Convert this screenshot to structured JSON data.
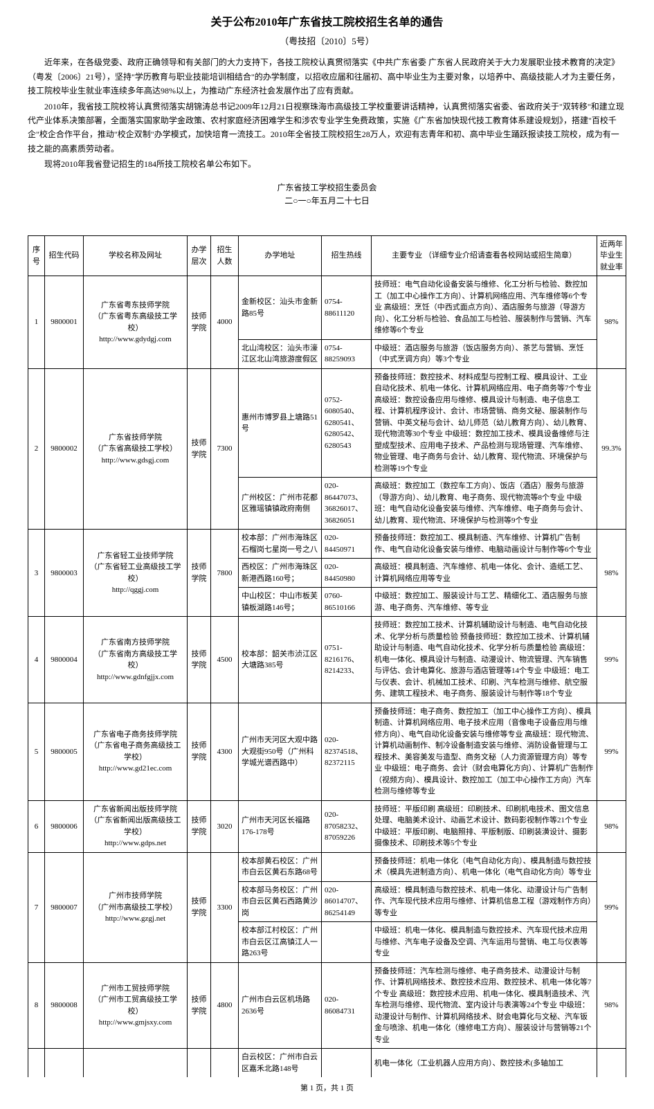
{
  "doc": {
    "title": "关于公布2010年广东省技工院校招生名单的通告",
    "subtitle": "（粤技招〔2010〕5号）",
    "paragraphs": [
      "近年来，在各级党委、政府正确领导和有关部门的大力支持下，各技工院校认真贯彻落实《中共广东省委 广东省人民政府关于大力发展职业技术教育的决定》（粤发〔2006〕21号），坚持\"学历教育与职业技能培训相结合\"的办学制度，以招收应届和往届初、高中毕业生为主要对象，以培养中、高级技能人才为主要任务，技工院校毕业生就业率连续多年高达98%以上，为推动广东经济社会发展作出了应有贡献。",
      "2010年，我省技工院校将认真贯彻落实胡锦涛总书记2009年12月21日视察珠海市高级技工学校重要讲话精神，认真贯彻落实省委、省政府关于\"双转移\"和建立现代产业体系决策部署，全面落实国家助学金政策、农村家庭经济困难学生和涉农专业学生免费政策，实施《广东省加快现代技工教育体系建设规划》，搭建\"百校千企\"校企合作平台，推动\"校企双制\"办学模式，加快培育一流技工。2010年全省技工院校招生28万人，欢迎有志青年和初、高中毕业生踊跃报读技工院校，成为有一技之能的高素质劳动者。",
      "现将2010年我省登记招生的184所技工院校名单公布如下。"
    ],
    "signature_org": "广东省技工学校招生委员会",
    "signature_date": "二○一○年五月二十七日",
    "footer": "第 1 页，共 1 页"
  },
  "table": {
    "headers": {
      "seq": "序号",
      "code": "招生代码",
      "name": "学校名称及网址",
      "level": "办学层次",
      "count": "招生人数",
      "addr": "办学地址",
      "phone": "招生热线",
      "major": "主要专业\n（详细专业介绍请查看各校网站或招生简章）",
      "rate": "近两年毕业生就业率"
    },
    "rows": [
      {
        "seq": "1",
        "code": "9800001",
        "name": "广东省粤东技师学院\n（广东省粤东高级技工学校）\nhttp://www.gdydgj.com",
        "level": "技师学院",
        "count": "4000",
        "addr1": "金新校区：汕头市金新路85号",
        "phone1": "0754-88611120",
        "major1": "技师班：电气自动化设备安装与维修、化工分析与检验、数控加工（加工中心操作工方向）、计算机网络应用、汽车维修等6个专业\n高级班：烹饪（中西式面点方向）、酒店服务与旅游（导游方向）、化工分析与检验、食品加工与检验、服装制作与营销、汽车维修等6个专业",
        "addr2": "北山湾校区：汕头市濠江区北山湾旅游度假区",
        "phone2": "0754-88259093",
        "major2": "中级班：酒店服务与旅游（饭店服务方向）、茶艺与营销、烹饪（中式烹调方向）等3个专业",
        "rate": "98%"
      },
      {
        "seq": "2",
        "code": "9800002",
        "name": "广东省技师学院\n（广东省高级技工学校）\nhttp://www.gdsgj.com",
        "level": "技师学院",
        "count": "7300",
        "addr1": "惠州市博罗县上塘路51号",
        "phone1": "0752-6080540、6280541、6280542、6280543",
        "major1": "预备技师班：数控技术、材料成型与控制工程、模具设计、工业自动化技术、机电一体化、计算机网络应用、电子商务等7个专业\n高级班：数控设备应用与维修、模具设计与制造、电子信息工程、计算机程序设计、会计、市场营销、商务文秘、服装制作与营销、中英文秘与会计、幼儿师范（幼儿教育方向）、幼儿教育、现代物流等30个专业\n中级班：数控加工技术、模具设备维修与注塑成型技术、应用电子技术、产品检测与现场管理、汽车维修、物业管理、电子商务与会计、幼儿教育、现代物流、环境保护与检测等19个专业",
        "addr2": "广州校区：广州市花都区雅瑶镇镇政府南侧",
        "phone2": "020-86447073、36826017、36826051",
        "major2": "高级班：数控加工（数控车工方向）、饭店（酒店）服务与旅游（导游方向）、幼儿教育、电子商务、现代物流等8个专业\n中级班：电气自动化设备安装与维修、汽车维修、电子商务与会计、幼儿教育、现代物流、环境保护与检测等9个专业",
        "rate": "99.3%"
      },
      {
        "seq": "3",
        "code": "9800003",
        "name": "广东省轻工业技师学院\n（广东省轻工业高级技工学校）\nhttp://qggj.com",
        "level": "技师学院",
        "count": "7800",
        "addr1": "校本部：广州市海珠区石榴岗七星岗一号之八",
        "phone1": "020-84450971",
        "major1": "预备技师班：数控加工、模具制造、汽车维修、计算机广告制作、电气自动化设备安装与维修、电脑动画设计与制作等6个专业",
        "addr2": "西校区：广州市海珠区新港西路160号；",
        "phone2": "020-84450980",
        "major2": "高级班：模具制造、汽车维修、机电一体化、会计、造纸工艺、计算机网络应用等专业",
        "addr3": "中山校区：中山市板芙镇板湖路146号；",
        "phone3": "0760-86510166",
        "major3": "中级班：数控加工、服装设计与工艺、精细化工、酒店服务与旅游、电子商务、汽车维修、等专业",
        "rate": "98%"
      },
      {
        "seq": "4",
        "code": "9800004",
        "name": "广东省南方技师学院\n（广东省南方高级技工学校）\nhttp://www.gdnfgjjx.com",
        "level": "技师学院",
        "count": "4500",
        "addr1": "校本部：韶关市浈江区大塘路385号",
        "phone1": "0751-8216176、8214233、",
        "major1": "技师班：数控加工技术、计算机辅助设计与制造、电气自动化技术、化学分析与质量检验\n预备技师班：数控加工技术、计算机辅助设计与制造、电气自动化技术、化学分析与质量检验\n高级班：机电一体化、模具设计与制造、动漫设计、物流管理、汽车销售与评估、会计电算化、旅游与酒店管理等14个专业\n中级班：电工与仪表、会计、机械加工技术、印刷、汽车检测与维修、航空服务、建筑工程技术、电子商务、服装设计与制作等18个专业",
        "rate": "99%"
      },
      {
        "seq": "5",
        "code": "9800005",
        "name": "广东省电子商务技师学院\n（广东省电子商务高级技工学校）\nhttp://www.gd21ec.com",
        "level": "技师学院",
        "count": "4300",
        "addr1": "广州市天河区大观中路大观街950号（广州科学城光谱西路中）",
        "phone1": "020-82374518、82372115",
        "major1": "预备技师班：电子商务、数控加工（加工中心操作工方向）、模具制造、计算机网络应用、电子技术应用（音像电子设备应用与维修方向）、电气自动化设备安装与维修等专业\n高级班：现代物流、计算机动画制作、制冷设备制造安装与维修、消防设备管理与工程技术、美容美发与造型、商务文秘（人力资源管理方向）等专业\n中级班：电子商务、会计（财会电算化方向）、计算机广告制作（视频方向）、模具设计、数控加工（加工中心操作工方向）汽车检测与维修等专业",
        "rate": "99%"
      },
      {
        "seq": "6",
        "code": "9800006",
        "name": "广东省新闻出版技师学院\n（广东省新闻出版高级技工学校）\nhttp://www.gdps.net",
        "level": "技师学院",
        "count": "3020",
        "addr1": "广州市天河区长福路176-178号",
        "phone1": "020-87058232、87059226",
        "major1": "技师班：平版印刷\n高级班：印刷技术、印刷机电技术、图文信息处理、电脑美术设计、动画艺术设计、数码影视制作等21个专业\n中级班：平版印刷、电脑照排、平版制版、印刷装潢设计、摄影摄像技术、印刷技术等5个专业",
        "rate": "98%"
      },
      {
        "seq": "7",
        "code": "9800007",
        "name": "广州市技师学院\n（广州市高级技工学校）\nhttp://www.gzgj.net",
        "level": "技师学院",
        "count": "3300",
        "addr1": "校本部黄石校区：广州市白云区黄石东路68号",
        "phone1": "",
        "major1": "预备技师班：机电一体化（电气自动化方向）、模具制造与数控技术（模具先进制造方向）、机电一体化（电气自动化方向）等专业",
        "addr2": "校本部马务校区：广州市白云区黄石西路黄沙岗",
        "phone2": "020-86014707、86254149",
        "major2": "高级班：模具制造与数控技术、机电一体化、动漫设计与广告制作、汽车现代技术应用与维修、计算机信息工程（游戏制作方向）等专业",
        "addr3": "校本部江村校区：广州市白云区江高镇江人一路263号",
        "phone3": "",
        "major3": "中级班：机电一体化、模具制造与数控技术、汽车现代技术应用与维修、汽车电子设备及空调、汽车运用与营销、电工与仪表等专业",
        "rate": "99%"
      },
      {
        "seq": "8",
        "code": "9800008",
        "name": "广州市工贸技师学院\n（广州市工贸高级技工学校）\nhttp://www.gmjsxy.com",
        "level": "技师学院",
        "count": "4800",
        "addr1": "广州市白云区机场路2636号",
        "phone1": "020-86084731",
        "major1": "预备技师班：汽车检测与维修、电子商务技术、动漫设计与制作、计算机网络技术、数控技术应用、数控技术、机电一体化等7个专业\n高级班：数控技术应用、机电一体化、模具制造技术、汽车检测与维修、现代物流、室内设计与表演等24个专业\n中级班：动漫设计与制作、计算机网络技术、财会电算化与文秘、汽车钣金与喷涂、机电一体化（维修电工方向）、服装设计与营销等21个专业",
        "rate": "98%"
      }
    ],
    "partial": {
      "addr": "白云校区：广州市白云区嘉禾北路148号",
      "major": "机电一体化（工业机器人应用方向）、数控技术(多轴加工"
    }
  }
}
